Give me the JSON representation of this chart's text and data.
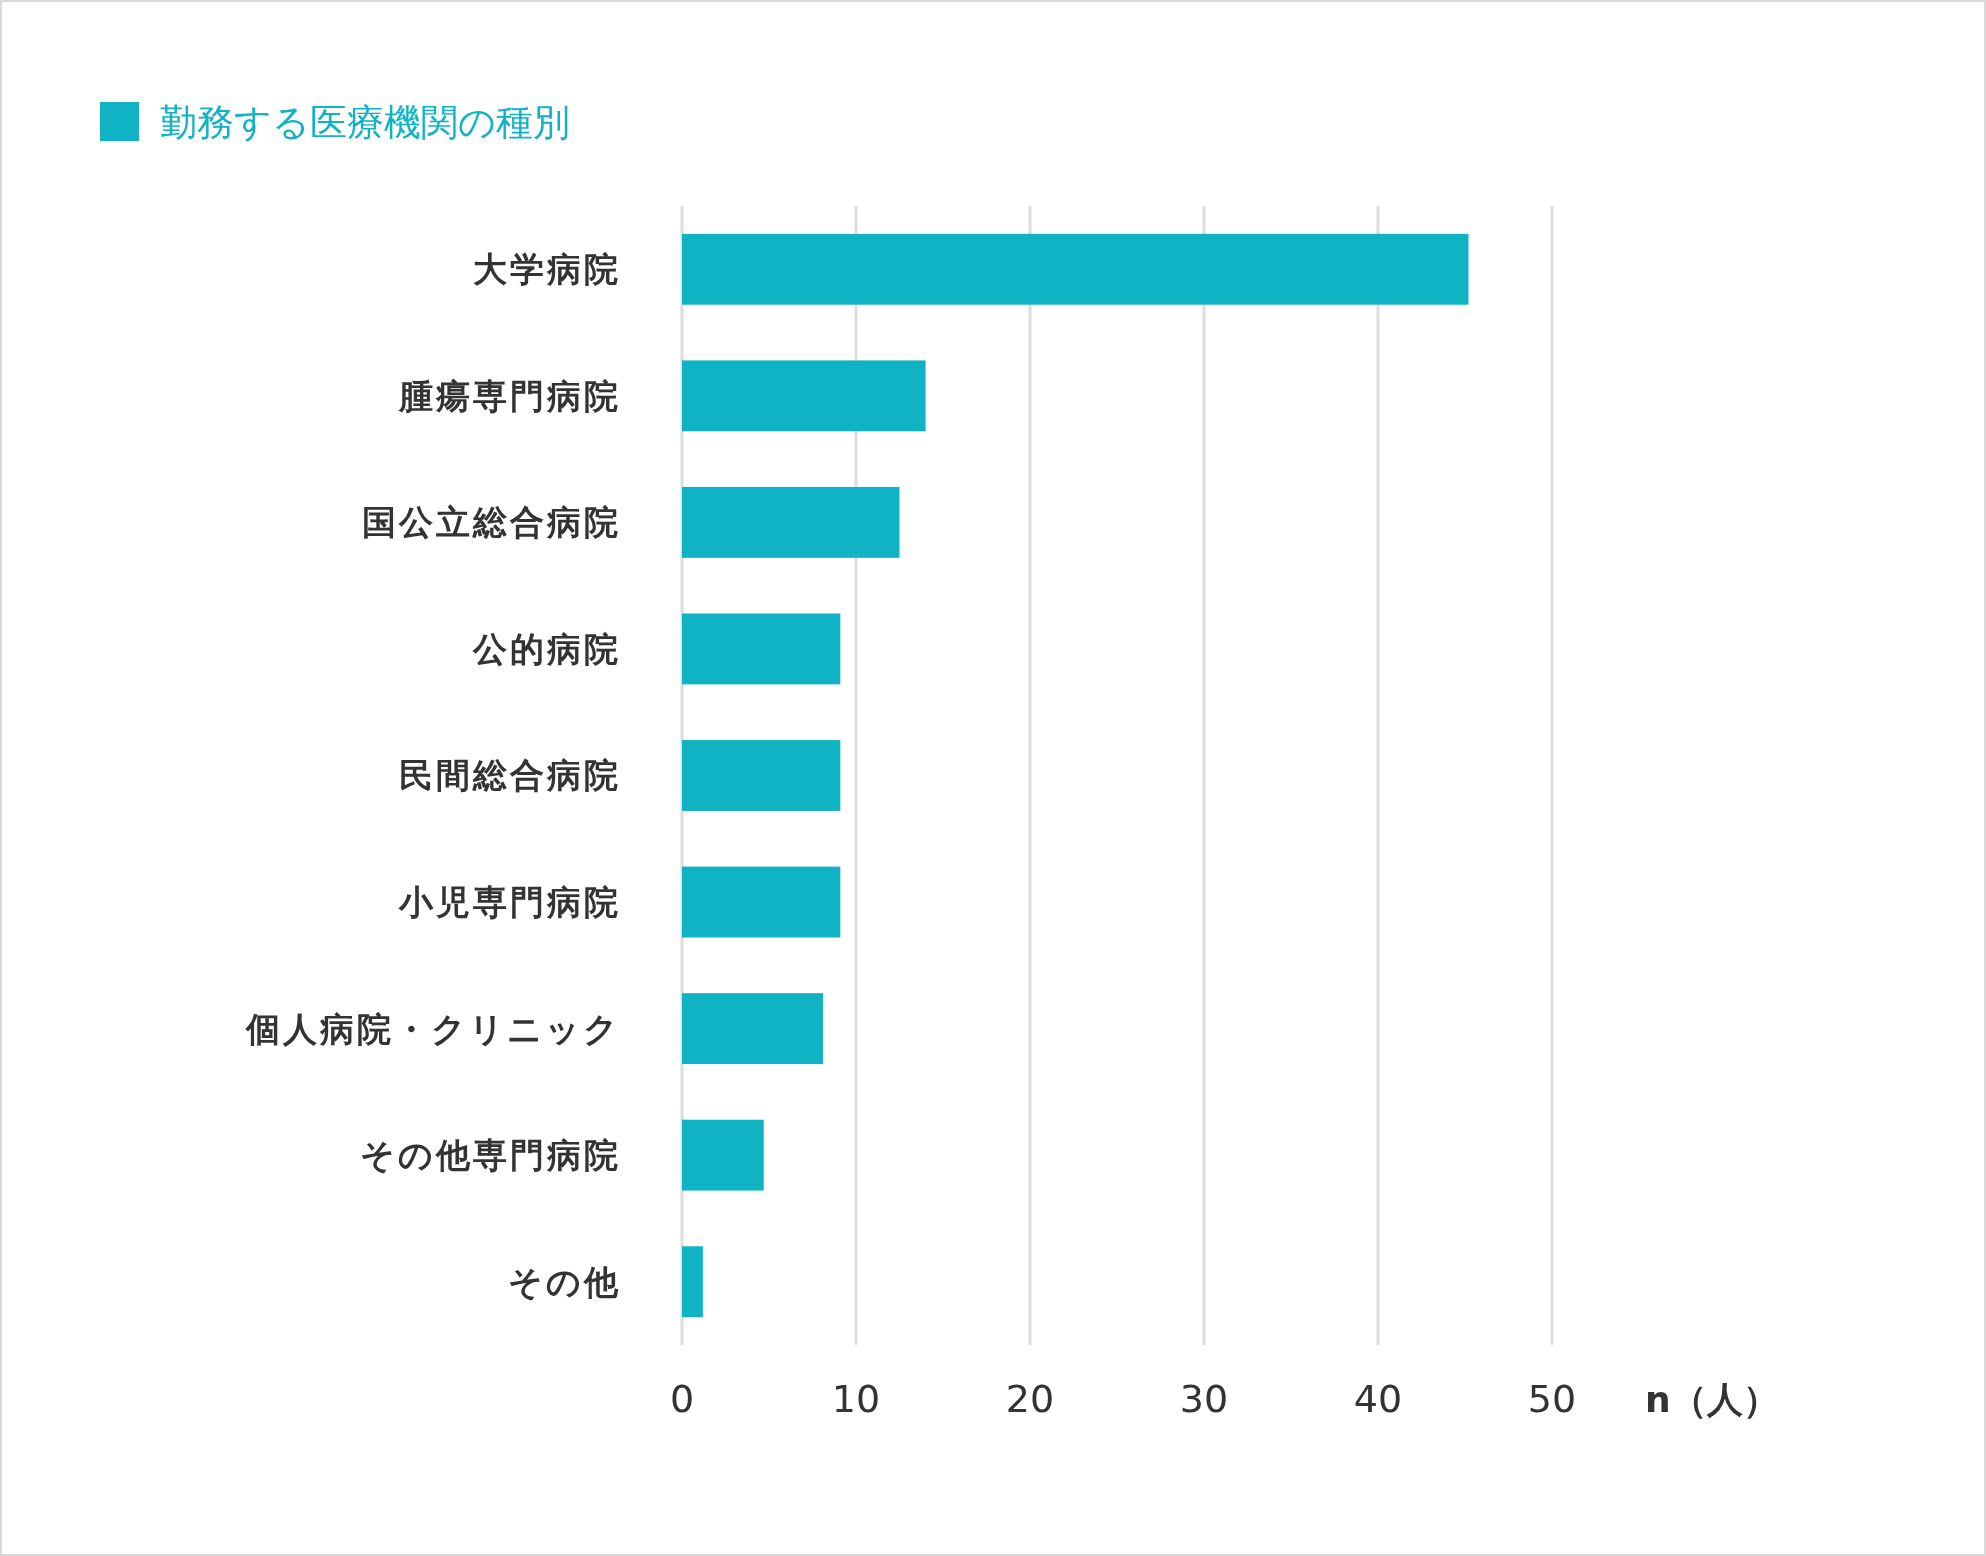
{
  "chart_data": {
    "type": "bar",
    "orientation": "horizontal",
    "categories": [
      "大学病院",
      "腫瘍専門病院",
      "国公立総合病院",
      "公的病院",
      "民間総合病院",
      "小児専門病院",
      "個人病院・クリニック",
      "その他専門病院",
      "その他"
    ],
    "series": [
      {
        "name": "勤務する医療機関の種別",
        "color": "#0fb3c3",
        "values": [
          45.2,
          14,
          12.5,
          9.1,
          9.1,
          9.1,
          8.1,
          4.7,
          1.2
        ]
      }
    ],
    "xlim": [
      0,
      50
    ],
    "xticks": [
      0,
      10,
      20,
      30,
      40,
      50
    ],
    "xlabel": "n（人）",
    "grid": "x",
    "legend": "top left"
  }
}
